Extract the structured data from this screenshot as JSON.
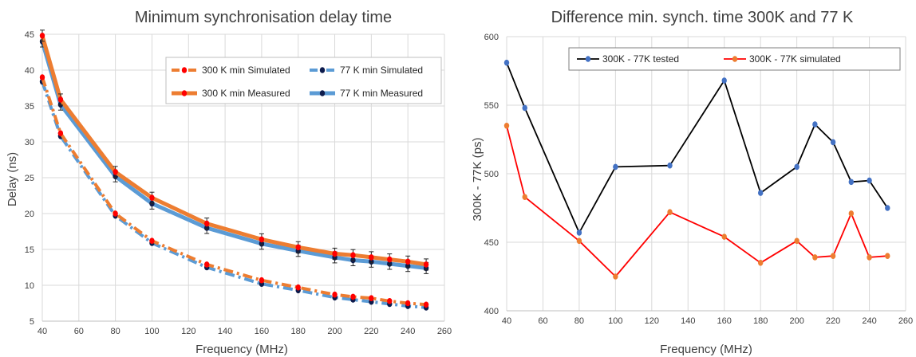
{
  "chart_data": [
    {
      "type": "line",
      "title": "Minimum synchronisation delay time",
      "xlabel": "Frequency (MHz)",
      "ylabel": "Delay (ns)",
      "xlim": [
        40,
        260
      ],
      "ylim": [
        5,
        45
      ],
      "xticks": [
        "40",
        "60",
        "80",
        "100",
        "120",
        "140",
        "160",
        "180",
        "200",
        "220",
        "240",
        "260"
      ],
      "yticks": [
        "5",
        "10",
        "15",
        "20",
        "25",
        "30",
        "35",
        "40",
        "45"
      ],
      "grid": true,
      "legend_position": "top-right",
      "x": [
        40,
        50,
        80,
        100,
        130,
        160,
        180,
        200,
        210,
        220,
        230,
        240,
        250
      ],
      "series": [
        {
          "name": "300 K min Simulated",
          "color": "#ed7d31",
          "marker": "#ff0000",
          "style": "dash-dot",
          "values": [
            39.0,
            31.2,
            20.0,
            16.2,
            12.9,
            10.7,
            9.7,
            8.7,
            8.4,
            8.2,
            7.8,
            7.5,
            7.3
          ]
        },
        {
          "name": "77 K min Simulated",
          "color": "#5b9bd5",
          "marker": "#0d1b4c",
          "style": "dash-dot",
          "values": [
            38.4,
            30.8,
            19.7,
            15.9,
            12.5,
            10.2,
            9.3,
            8.3,
            8.0,
            7.7,
            7.4,
            7.1,
            6.9
          ]
        },
        {
          "name": "300 K min Measured",
          "color": "#ed7d31",
          "marker": "#ff0000",
          "style": "solid",
          "values": [
            44.8,
            35.9,
            25.8,
            22.2,
            18.6,
            16.4,
            15.3,
            14.4,
            14.2,
            13.9,
            13.6,
            13.3,
            12.9
          ]
        },
        {
          "name": "77 K min Measured",
          "color": "#5b9bd5",
          "marker": "#0d1b4c",
          "style": "solid",
          "values": [
            44.0,
            35.2,
            25.2,
            21.4,
            18.0,
            15.8,
            14.8,
            13.9,
            13.5,
            13.3,
            13.0,
            12.7,
            12.4
          ]
        }
      ]
    },
    {
      "type": "line",
      "title": "Difference min. synch. time 300K and 77 K",
      "xlabel": "Frequency (MHz)",
      "ylabel": "300K - 77K (ps)",
      "xlim": [
        40,
        260
      ],
      "ylim": [
        400,
        600
      ],
      "xticks": [
        "40",
        "60",
        "80",
        "100",
        "120",
        "140",
        "160",
        "180",
        "200",
        "220",
        "240",
        "260"
      ],
      "yticks": [
        "400",
        "450",
        "500",
        "550",
        "600"
      ],
      "grid": true,
      "legend_position": "top",
      "x": [
        40,
        50,
        80,
        100,
        130,
        160,
        180,
        200,
        210,
        220,
        230,
        240,
        250
      ],
      "series": [
        {
          "name": "300K - 77K tested",
          "color": "#000000",
          "marker": "#4472c4",
          "values": [
            581,
            548,
            457,
            505,
            506,
            568,
            486,
            505,
            536,
            523,
            494,
            495,
            475
          ]
        },
        {
          "name": "300K - 77K simulated",
          "color": "#ff0000",
          "marker": "#ed7d31",
          "values": [
            535,
            483,
            451,
            425,
            472,
            454,
            435,
            451,
            439,
            440,
            471,
            439,
            440
          ]
        }
      ]
    }
  ]
}
